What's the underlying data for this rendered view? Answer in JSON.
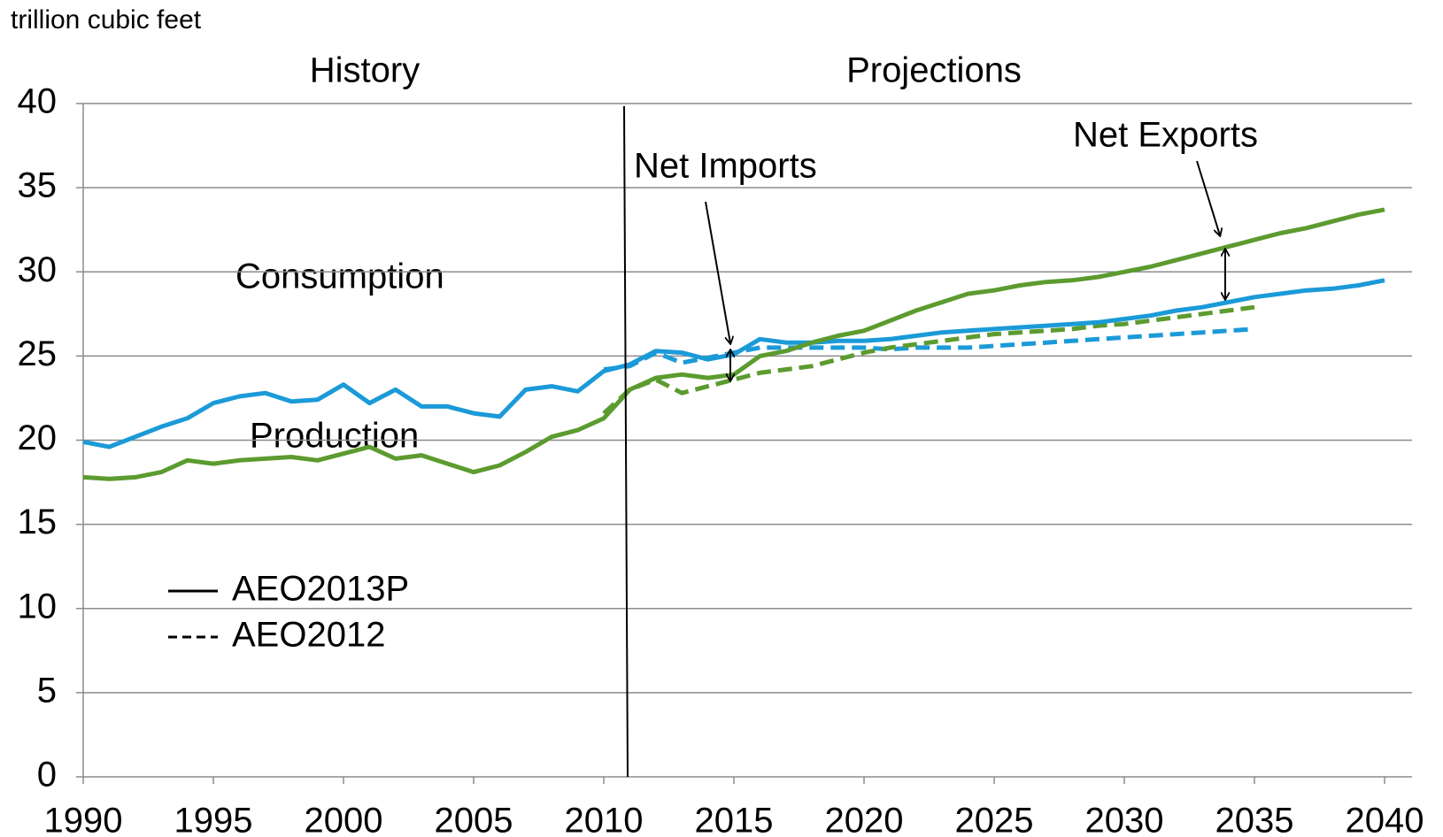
{
  "chart_data": {
    "type": "line",
    "y_label": "trillion cubic feet",
    "annotations": {
      "history": "History",
      "projections": "Projections",
      "net_imports": "Net Imports",
      "net_exports": "Net Exports",
      "consumption": {
        "text": "Consumption",
        "color": "#1f9ad6"
      },
      "production": {
        "text": "Production",
        "color": "#5a9a32"
      }
    },
    "legend": [
      {
        "label": "AEO2013P",
        "dashed": false
      },
      {
        "label": "AEO2012",
        "dashed": true
      }
    ],
    "x": [
      1990,
      1991,
      1992,
      1993,
      1994,
      1995,
      1996,
      1997,
      1998,
      1999,
      2000,
      2001,
      2002,
      2003,
      2004,
      2005,
      2006,
      2007,
      2008,
      2009,
      2010,
      2011,
      2012,
      2013,
      2014,
      2015,
      2016,
      2017,
      2018,
      2019,
      2020,
      2021,
      2022,
      2023,
      2024,
      2025,
      2026,
      2027,
      2028,
      2029,
      2030,
      2031,
      2032,
      2033,
      2034,
      2035,
      2036,
      2037,
      2038,
      2039,
      2040
    ],
    "series": [
      {
        "color": "#1b9ad8",
        "dashed": false,
        "values": [
          19.9,
          19.6,
          20.2,
          20.8,
          21.3,
          22.2,
          22.6,
          22.8,
          22.3,
          22.4,
          23.3,
          22.2,
          23.0,
          22.0,
          22.0,
          21.6,
          21.4,
          23.0,
          23.2,
          22.9,
          24.1,
          24.5,
          25.3,
          25.2,
          24.8,
          25.1,
          26.0,
          25.8,
          25.8,
          25.9,
          25.9,
          26.0,
          26.2,
          26.4,
          26.5,
          26.6,
          26.7,
          26.8,
          26.9,
          27.0,
          27.2,
          27.4,
          27.7,
          27.9,
          28.2,
          28.5,
          28.7,
          28.9,
          29.0,
          29.2,
          29.5
        ]
      },
      {
        "color": "#5c9b2f",
        "dashed": false,
        "values": [
          17.8,
          17.7,
          17.8,
          18.1,
          18.8,
          18.6,
          18.8,
          18.9,
          19.0,
          18.8,
          19.2,
          19.6,
          18.9,
          19.1,
          18.6,
          18.1,
          18.5,
          19.3,
          20.2,
          20.6,
          21.3,
          23.0,
          23.7,
          23.9,
          23.7,
          23.9,
          25.0,
          25.3,
          25.8,
          26.2,
          26.5,
          27.1,
          27.7,
          28.2,
          28.7,
          28.9,
          29.2,
          29.4,
          29.5,
          29.7,
          30.0,
          30.3,
          30.7,
          31.1,
          31.5,
          31.9,
          32.3,
          32.6,
          33.0,
          33.4,
          33.7
        ]
      },
      {
        "color": "#1b9ad8",
        "dashed": true,
        "values": [
          null,
          null,
          null,
          null,
          null,
          null,
          null,
          null,
          null,
          null,
          null,
          null,
          null,
          null,
          null,
          null,
          null,
          null,
          null,
          null,
          24.2,
          24.4,
          25.2,
          24.6,
          24.9,
          25.2,
          25.5,
          25.5,
          25.5,
          25.5,
          25.5,
          25.4,
          25.5,
          25.5,
          25.5,
          25.6,
          25.7,
          25.8,
          25.9,
          26.0,
          26.1,
          26.2,
          26.3,
          26.4,
          26.5,
          26.6,
          null,
          null,
          null,
          null,
          null
        ]
      },
      {
        "color": "#5c9b2f",
        "dashed": true,
        "values": [
          null,
          null,
          null,
          null,
          null,
          null,
          null,
          null,
          null,
          null,
          null,
          null,
          null,
          null,
          null,
          null,
          null,
          null,
          null,
          null,
          21.6,
          23.0,
          23.6,
          22.8,
          23.2,
          23.6,
          24.0,
          24.2,
          24.4,
          24.8,
          25.2,
          25.5,
          25.7,
          25.9,
          26.1,
          26.3,
          26.4,
          26.5,
          26.6,
          26.8,
          26.9,
          27.1,
          27.3,
          27.5,
          27.7,
          27.9,
          null,
          null,
          null,
          null,
          null
        ]
      }
    ],
    "xlim": [
      1990,
      2040
    ],
    "xticks": [
      1990,
      1995,
      2000,
      2005,
      2010,
      2015,
      2020,
      2025,
      2030,
      2035,
      2040
    ],
    "ylim": [
      0,
      40
    ],
    "yticks": [
      0,
      5,
      10,
      15,
      20,
      25,
      30,
      35,
      40
    ],
    "grid": true
  }
}
